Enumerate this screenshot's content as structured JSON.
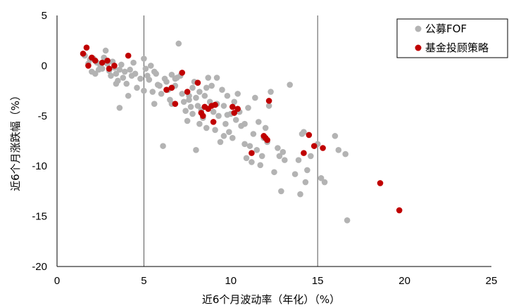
{
  "chart_data": {
    "type": "scatter",
    "xlabel": "近6个月波动率（年化）（%）",
    "ylabel": "近6个月涨跌幅（%）",
    "xlim": [
      0,
      25
    ],
    "ylim": [
      -20,
      5
    ],
    "x_ticks": [
      0,
      5,
      10,
      15,
      20,
      25
    ],
    "y_ticks": [
      5,
      0,
      -5,
      -10,
      -15,
      -20
    ],
    "x_tick_labels": [
      "0",
      "5",
      "10",
      "15",
      "20",
      "25"
    ],
    "y_tick_labels": [
      "5",
      "0",
      "-5",
      "-10",
      "-15",
      "-20"
    ],
    "vertical_reference_lines": [
      5,
      15
    ],
    "legend_position": "top-right",
    "grid": false,
    "series": [
      {
        "name": "公募FOF",
        "color": "#b3b3b3",
        "points": [
          [
            1.6,
            1.0
          ],
          [
            1.9,
            0.6
          ],
          [
            2.0,
            -0.6
          ],
          [
            2.2,
            -0.8
          ],
          [
            2.3,
            0.3
          ],
          [
            2.5,
            0.0
          ],
          [
            2.6,
            -0.3
          ],
          [
            2.7,
            0.8
          ],
          [
            2.8,
            1.5
          ],
          [
            2.9,
            0.2
          ],
          [
            3.0,
            -0.5
          ],
          [
            3.1,
            -1.0
          ],
          [
            3.2,
            0.4
          ],
          [
            3.3,
            -0.2
          ],
          [
            3.4,
            -0.8
          ],
          [
            3.5,
            -1.5
          ],
          [
            3.6,
            -0.4
          ],
          [
            3.7,
            0.1
          ],
          [
            3.8,
            -1.2
          ],
          [
            3.9,
            -0.6
          ],
          [
            4.0,
            -1.8
          ],
          [
            4.1,
            -3.0
          ],
          [
            4.2,
            -0.4
          ],
          [
            4.3,
            -1.0
          ],
          [
            4.4,
            0.3
          ],
          [
            4.5,
            -0.8
          ],
          [
            3.6,
            -4.2
          ],
          [
            4.8,
            -1.3
          ],
          [
            5.0,
            0.7
          ],
          [
            5.0,
            -2.5
          ],
          [
            5.1,
            -0.3
          ],
          [
            5.2,
            -1.0
          ],
          [
            5.3,
            -1.4
          ],
          [
            5.4,
            0.0
          ],
          [
            5.5,
            -2.6
          ],
          [
            5.6,
            -3.8
          ],
          [
            5.7,
            -0.8
          ],
          [
            5.9,
            -2.0
          ],
          [
            6.0,
            -2.8
          ],
          [
            6.1,
            -8.0
          ],
          [
            6.2,
            -1.3
          ],
          [
            6.3,
            -1.6
          ],
          [
            6.4,
            -2.4
          ],
          [
            6.5,
            -3.4
          ],
          [
            6.6,
            -0.9
          ],
          [
            6.8,
            -2.0
          ],
          [
            6.9,
            -1.2
          ],
          [
            7.0,
            2.2
          ],
          [
            7.1,
            -1.0
          ],
          [
            7.2,
            -2.8
          ],
          [
            7.3,
            -3.6
          ],
          [
            7.4,
            -4.5
          ],
          [
            7.5,
            -5.5
          ],
          [
            7.6,
            -3.0
          ],
          [
            7.7,
            -4.1
          ],
          [
            7.8,
            -2.2
          ],
          [
            7.9,
            -1.6
          ],
          [
            8.0,
            -3.2
          ],
          [
            8.1,
            -4.0
          ],
          [
            8.2,
            -2.6
          ],
          [
            8.3,
            -4.4
          ],
          [
            8.4,
            -5.2
          ],
          [
            8.5,
            -3.0
          ],
          [
            8.6,
            -6.2
          ],
          [
            8.7,
            -1.2
          ],
          [
            8.8,
            -3.6
          ],
          [
            8.9,
            -2.0
          ],
          [
            9.0,
            -4.6
          ],
          [
            9.1,
            -6.4
          ],
          [
            9.2,
            -3.8
          ],
          [
            9.3,
            -5.0
          ],
          [
            9.4,
            -7.6
          ],
          [
            9.5,
            -2.4
          ],
          [
            9.6,
            -4.0
          ],
          [
            9.7,
            -5.8
          ],
          [
            9.8,
            -3.0
          ],
          [
            9.9,
            -6.6
          ],
          [
            10.0,
            -4.8
          ],
          [
            10.1,
            -7.2
          ],
          [
            10.2,
            -3.6
          ],
          [
            10.3,
            -5.4
          ],
          [
            10.4,
            -2.8
          ],
          [
            10.6,
            -6.0
          ],
          [
            10.8,
            -7.8
          ],
          [
            11.0,
            -4.2
          ],
          [
            11.2,
            -9.6
          ],
          [
            11.3,
            -6.8
          ],
          [
            11.4,
            -3.2
          ],
          [
            11.5,
            -8.4
          ],
          [
            11.6,
            -5.6
          ],
          [
            11.8,
            -9.0
          ],
          [
            12.0,
            -6.2
          ],
          [
            12.1,
            -7.6
          ],
          [
            12.3,
            -2.6
          ],
          [
            12.5,
            -10.6
          ],
          [
            12.7,
            -8.2
          ],
          [
            12.9,
            -12.5
          ],
          [
            13.1,
            -9.4
          ],
          [
            13.4,
            -1.9
          ],
          [
            13.7,
            -10.8
          ],
          [
            14.0,
            -12.8
          ],
          [
            14.2,
            -6.6
          ],
          [
            14.3,
            -11.6
          ],
          [
            14.6,
            -9.0
          ],
          [
            15.0,
            -7.8
          ],
          [
            15.2,
            -11.2
          ],
          [
            15.4,
            -11.6
          ],
          [
            16.0,
            -7.0
          ],
          [
            16.2,
            -8.4
          ],
          [
            16.6,
            -8.8
          ],
          [
            16.7,
            -15.4
          ],
          [
            8.0,
            -8.4
          ],
          [
            9.6,
            -7.0
          ],
          [
            10.9,
            -9.2
          ],
          [
            11.7,
            -9.9
          ],
          [
            12.8,
            -9.0
          ],
          [
            13.9,
            -9.4
          ],
          [
            14.4,
            -10.4
          ],
          [
            6.6,
            -3.8
          ],
          [
            7.8,
            -4.8
          ],
          [
            8.6,
            -2.2
          ],
          [
            9.2,
            -1.2
          ],
          [
            10.5,
            -4.6
          ],
          [
            11.1,
            -8.0
          ],
          [
            13.0,
            -8.6
          ],
          [
            14.1,
            -6.8
          ],
          [
            5.8,
            -1.9
          ],
          [
            4.6,
            -2.2
          ],
          [
            3.4,
            -1.8
          ],
          [
            2.4,
            -0.4
          ],
          [
            1.8,
            0.2
          ],
          [
            2.1,
            0.7
          ],
          [
            9.8,
            -4.9
          ],
          [
            10.8,
            -5.8
          ],
          [
            11.9,
            -7.2
          ],
          [
            12.2,
            -4.0
          ],
          [
            8.2,
            -5.8
          ],
          [
            7.6,
            -3.4
          ],
          [
            6.8,
            -1.3
          ],
          [
            5.6,
            -0.6
          ]
        ]
      },
      {
        "name": "基金投顾策略",
        "color": "#c00000",
        "points": [
          [
            1.5,
            1.2
          ],
          [
            1.7,
            1.8
          ],
          [
            1.8,
            0.0
          ],
          [
            2.0,
            0.8
          ],
          [
            2.2,
            0.5
          ],
          [
            2.6,
            0.3
          ],
          [
            2.9,
            0.5
          ],
          [
            3.0,
            -0.3
          ],
          [
            3.3,
            0.0
          ],
          [
            4.1,
            1.0
          ],
          [
            6.3,
            -2.4
          ],
          [
            6.6,
            -2.2
          ],
          [
            6.8,
            -3.8
          ],
          [
            7.2,
            -0.7
          ],
          [
            7.5,
            -2.6
          ],
          [
            8.1,
            -1.7
          ],
          [
            8.3,
            -4.7
          ],
          [
            8.4,
            -5.0
          ],
          [
            8.5,
            -4.1
          ],
          [
            8.7,
            -4.3
          ],
          [
            8.9,
            -4.0
          ],
          [
            9.0,
            -5.6
          ],
          [
            9.1,
            -3.9
          ],
          [
            10.1,
            -4.1
          ],
          [
            10.2,
            -4.7
          ],
          [
            10.4,
            -4.3
          ],
          [
            11.2,
            -8.7
          ],
          [
            11.9,
            -7.0
          ],
          [
            12.0,
            -7.2
          ],
          [
            12.1,
            -7.4
          ],
          [
            12.2,
            -3.5
          ],
          [
            14.2,
            -8.7
          ],
          [
            14.5,
            -6.9
          ],
          [
            14.8,
            -8.0
          ],
          [
            15.3,
            -8.2
          ],
          [
            18.6,
            -11.7
          ],
          [
            19.7,
            -14.4
          ]
        ]
      }
    ]
  }
}
